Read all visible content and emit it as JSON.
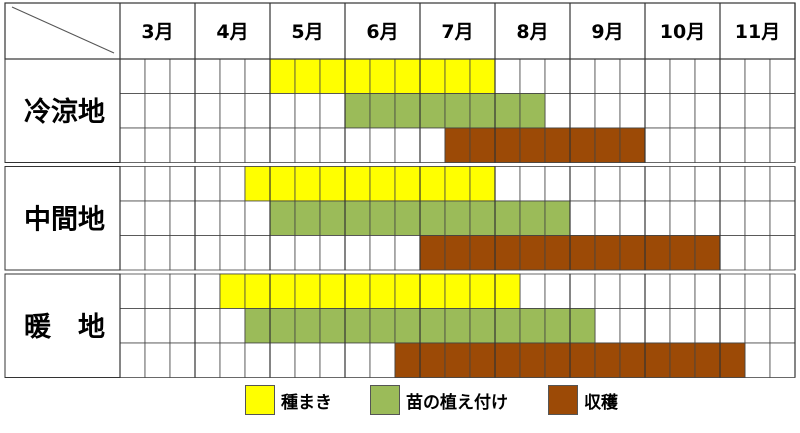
{
  "chart_data": {
    "type": "gantt",
    "months": [
      "3月",
      "4月",
      "5月",
      "6月",
      "7月",
      "8月",
      "9月",
      "10月",
      "11月"
    ],
    "subdivisions_per_month": 3,
    "regions": [
      {
        "name": "冷涼地",
        "rows": [
          {
            "activity": "種まき",
            "start": "5月上旬",
            "end": "7月下旬"
          },
          {
            "activity": "苗の植え付け",
            "start": "6月上旬",
            "end": "8月中旬"
          },
          {
            "activity": "収穫",
            "start": "7月中旬",
            "end": "9月下旬"
          }
        ]
      },
      {
        "name": "中間地",
        "rows": [
          {
            "activity": "種まき",
            "start": "4月下旬",
            "end": "7月下旬"
          },
          {
            "activity": "苗の植え付け",
            "start": "5月上旬",
            "end": "8月下旬"
          },
          {
            "activity": "収穫",
            "start": "7月上旬",
            "end": "10月下旬"
          }
        ]
      },
      {
        "name": "暖　地",
        "rows": [
          {
            "activity": "種まき",
            "start": "4月中旬",
            "end": "8月上旬"
          },
          {
            "activity": "苗の植え付け",
            "start": "4月下旬",
            "end": "9月上旬"
          },
          {
            "activity": "収穫",
            "start": "6月下旬",
            "end": "11月上旬"
          }
        ]
      }
    ],
    "segments": {
      "上旬": 0,
      "中旬": 1,
      "下旬": 2
    },
    "legend": [
      {
        "label": "種まき",
        "color": "#ffff00"
      },
      {
        "label": "苗の植え付け",
        "color": "#9bbb59"
      },
      {
        "label": "収穫",
        "color": "#9c4a06"
      }
    ]
  }
}
